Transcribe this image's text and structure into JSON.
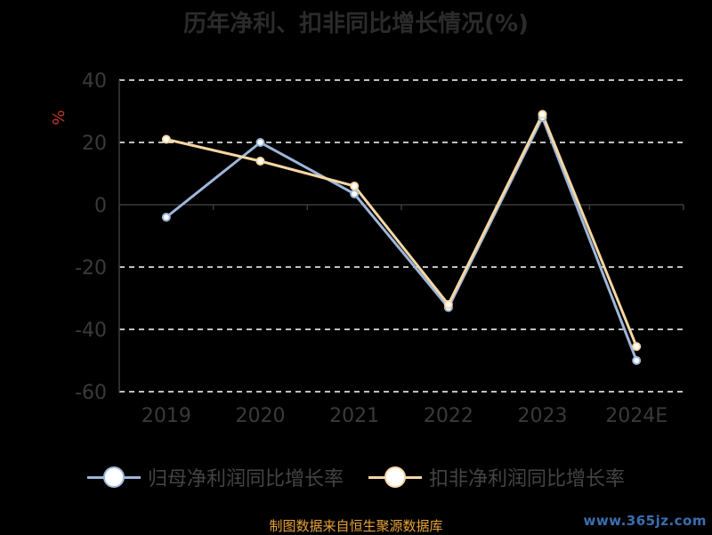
{
  "colors": {
    "series1": "#9db6d9",
    "series2": "#f7d7a3",
    "axis_text": "#3a3a3a",
    "grid": "#ffffff",
    "ylabel": "#c0392b"
  },
  "chart_data": {
    "type": "line",
    "title": "历年净利、扣非同比增长情况(%)",
    "ylabel": "%",
    "categories": [
      "2019",
      "2020",
      "2021",
      "2022",
      "2023",
      "2024E"
    ],
    "ylim": [
      -60,
      40
    ],
    "yticks": [
      40,
      20,
      0,
      -20,
      -40,
      -60
    ],
    "grid": true,
    "legend_position": "bottom",
    "series": [
      {
        "name": "归母净利润同比增长率",
        "values": [
          -4,
          20,
          3.5,
          -33,
          28,
          -50
        ]
      },
      {
        "name": "扣非净利润同比增长率",
        "values": [
          21,
          14,
          6,
          -32,
          29,
          -45.5
        ]
      }
    ]
  },
  "footer": {
    "source": "制图数据来自恒生聚源数据库",
    "watermark": "www.365jz.com"
  }
}
